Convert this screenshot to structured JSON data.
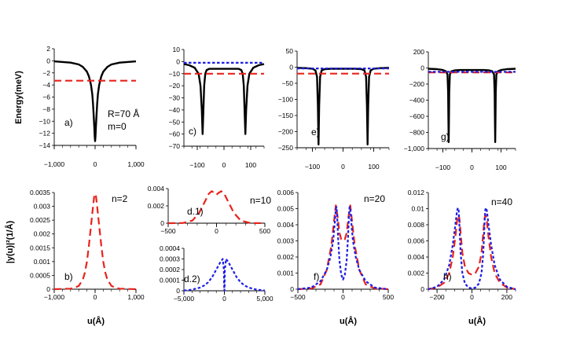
{
  "axis_labels": {
    "energy": "Energy(meV)",
    "psi": "|y(u)|²(1/Å)",
    "u": "u(Å)"
  },
  "colors": {
    "potential": "#000000",
    "red": "#e8231c",
    "blue": "#1d1ee6"
  },
  "chart_data": [
    {
      "id": "a",
      "type": "line",
      "label": "a)",
      "annotations": [
        "R=70 Å",
        "m=0"
      ],
      "xlim": [
        -1000,
        1000
      ],
      "ylim": [
        -14,
        2
      ],
      "xticks": [
        -1000,
        0,
        1000
      ],
      "xtick_labels": [
        "−1,000",
        "0",
        "1,000"
      ],
      "yticks": [
        2,
        0,
        -2,
        -4,
        -6,
        -8,
        -10,
        -12,
        -14
      ],
      "ytick_labels": [
        "2",
        "0",
        "−2",
        "−4",
        "−6",
        "−8",
        "−10",
        "−12",
        "−14"
      ],
      "ylabel": "Energy(meV)",
      "series": [
        {
          "name": "potential",
          "style": "solid",
          "color": "#000000",
          "x": [
            -1000,
            -600,
            -400,
            -300,
            -200,
            -150,
            -100,
            -70,
            -50,
            -30,
            -20,
            -10,
            0,
            10,
            20,
            30,
            50,
            70,
            100,
            150,
            200,
            300,
            400,
            600,
            1000
          ],
          "y": [
            -0.1,
            -0.3,
            -0.6,
            -1.0,
            -1.8,
            -2.6,
            -4.0,
            -5.5,
            -7.2,
            -9.5,
            -11.0,
            -12.5,
            -13.3,
            -12.5,
            -11.0,
            -9.5,
            -7.2,
            -5.5,
            -4.0,
            -2.6,
            -1.8,
            -1.0,
            -0.6,
            -0.3,
            -0.1
          ]
        },
        {
          "name": "energy level",
          "style": "dashed",
          "color": "#e8231c",
          "x": [
            -1000,
            1000
          ],
          "y": [
            -3.3,
            -3.3
          ]
        }
      ]
    },
    {
      "id": "b",
      "type": "line",
      "label": "b)",
      "note": "n=2",
      "xlim": [
        -1000,
        1000
      ],
      "ylim": [
        0,
        0.0035
      ],
      "xticks": [
        -1000,
        0,
        1000
      ],
      "xtick_labels": [
        "−1,000",
        "0",
        "1,000"
      ],
      "yticks": [
        0,
        0.0005,
        0.001,
        0.0015,
        0.002,
        0.0025,
        0.003,
        0.0035
      ],
      "ytick_labels": [
        "0",
        "0.0005",
        "0.001",
        "0.0015",
        "0.002",
        "0.0025",
        "0.003",
        "0.0035"
      ],
      "xlabel": "u(Å)",
      "ylabel": "|y(u)|²(1/Å)",
      "series": [
        {
          "name": "probability density",
          "style": "dashed",
          "color": "#e8231c",
          "x": [
            -1000,
            -600,
            -500,
            -400,
            -300,
            -250,
            -200,
            -150,
            -100,
            -50,
            -20,
            0,
            20,
            50,
            100,
            150,
            200,
            250,
            300,
            400,
            500,
            600,
            1000
          ],
          "y": [
            0,
            2e-05,
            5e-05,
            0.00012,
            0.00035,
            0.0006,
            0.001,
            0.0016,
            0.0023,
            0.003,
            0.0034,
            0.00345,
            0.0034,
            0.003,
            0.0023,
            0.0016,
            0.001,
            0.0006,
            0.00035,
            0.00012,
            5e-05,
            2e-05,
            0
          ]
        }
      ]
    },
    {
      "id": "c",
      "type": "line",
      "label": "c)",
      "xlim": [
        -150,
        150
      ],
      "ylim": [
        -70,
        10
      ],
      "xticks": [
        -100,
        0,
        100
      ],
      "xtick_labels": [
        "−100",
        "0",
        "100"
      ],
      "yticks": [
        10,
        0,
        -10,
        -20,
        -30,
        -40,
        -50,
        -60,
        -70
      ],
      "ytick_labels": [
        "10",
        "0",
        "−10",
        "−20",
        "−30",
        "−40",
        "−50",
        "−60",
        "−70"
      ],
      "series": [
        {
          "name": "potential",
          "style": "solid",
          "color": "#000000",
          "x": [
            -150,
            -130,
            -110,
            -95,
            -88,
            -83,
            -80,
            -77,
            -74,
            -70,
            -65,
            -55,
            -40,
            -20,
            0,
            20,
            40,
            55,
            65,
            70,
            74,
            77,
            80,
            83,
            88,
            95,
            110,
            130,
            150
          ],
          "y": [
            -2,
            -3,
            -5,
            -10,
            -20,
            -40,
            -60,
            -40,
            -20,
            -10,
            -7,
            -6,
            -6,
            -6,
            -6,
            -6,
            -6,
            -6,
            -7,
            -10,
            -20,
            -40,
            -60,
            -40,
            -20,
            -10,
            -5,
            -3,
            -2
          ]
        },
        {
          "name": "level red",
          "style": "dashed",
          "color": "#e8231c",
          "x": [
            -150,
            150
          ],
          "y": [
            -10,
            -10
          ]
        },
        {
          "name": "level blue",
          "style": "dotted",
          "color": "#1d1ee6",
          "x": [
            -150,
            150
          ],
          "y": [
            -1,
            -1
          ]
        }
      ]
    },
    {
      "id": "d1",
      "type": "line",
      "label": "d.1)",
      "note": "n=10",
      "xlim": [
        -500,
        500
      ],
      "ylim": [
        0,
        0.004
      ],
      "xticks": [
        -500,
        0,
        500
      ],
      "xtick_labels": [
        "−500",
        "0",
        "500"
      ],
      "yticks": [
        0,
        0.002,
        0.004
      ],
      "ytick_labels": [
        "0",
        "0.002",
        "0.004"
      ],
      "series": [
        {
          "name": "probability density",
          "style": "dashed",
          "color": "#e8231c",
          "x": [
            -500,
            -350,
            -250,
            -180,
            -120,
            -80,
            -50,
            -20,
            0,
            20,
            50,
            80,
            120,
            180,
            250,
            350,
            500
          ],
          "y": [
            0,
            2e-05,
            0.0003,
            0.0012,
            0.0025,
            0.0034,
            0.0037,
            0.0035,
            0.0033,
            0.0035,
            0.0037,
            0.0034,
            0.0025,
            0.0012,
            0.0003,
            2e-05,
            0
          ]
        }
      ]
    },
    {
      "id": "d2",
      "type": "line",
      "label": "d.2)",
      "xlim": [
        -5000,
        5000
      ],
      "ylim": [
        0,
        0.0004
      ],
      "xticks": [
        -5000,
        0,
        5000
      ],
      "xtick_labels": [
        "−5,000",
        "0",
        "5,000"
      ],
      "yticks": [
        0,
        0.0001,
        0.0002,
        0.0003,
        0.0004
      ],
      "ytick_labels": [
        "0",
        "0.0001",
        "0.0002",
        "0.0003",
        "0.0004"
      ],
      "series": [
        {
          "name": "probability density",
          "style": "dotted",
          "color": "#1d1ee6",
          "x": [
            -5000,
            -4000,
            -3000,
            -2500,
            -2000,
            -1500,
            -1000,
            -500,
            -200,
            -60,
            -30,
            0,
            30,
            60,
            200,
            500,
            1000,
            1500,
            2000,
            2500,
            3000,
            4000,
            5000
          ],
          "y": [
            2e-06,
            1e-05,
            3e-05,
            5e-05,
            8e-05,
            0.00013,
            0.0002,
            0.00027,
            0.0003,
            0.0002,
            5e-05,
            0,
            5e-05,
            0.0002,
            0.0003,
            0.00027,
            0.0002,
            0.00013,
            8e-05,
            5e-05,
            3e-05,
            1e-05,
            2e-06
          ]
        }
      ]
    },
    {
      "id": "e",
      "type": "line",
      "label": "e)",
      "xlim": [
        -150,
        150
      ],
      "ylim": [
        -250,
        50
      ],
      "xticks": [
        -100,
        0,
        100
      ],
      "xtick_labels": [
        "−100",
        "0",
        "100"
      ],
      "yticks": [
        50,
        0,
        -50,
        -100,
        -150,
        -200,
        -250
      ],
      "ytick_labels": [
        "50",
        "0",
        "−50",
        "−100",
        "−150",
        "−200",
        "−250"
      ],
      "series": [
        {
          "name": "potential",
          "style": "solid",
          "color": "#000000",
          "x": [
            -150,
            -120,
            -100,
            -90,
            -85,
            -82,
            -80,
            -78,
            -75,
            -70,
            -60,
            -40,
            0,
            40,
            60,
            70,
            75,
            78,
            80,
            82,
            85,
            90,
            100,
            120,
            150
          ],
          "y": [
            -2,
            -3,
            -5,
            -10,
            -30,
            -120,
            -240,
            -120,
            -30,
            -10,
            -6,
            -5,
            -5,
            -5,
            -6,
            -10,
            -30,
            -120,
            -240,
            -120,
            -30,
            -10,
            -5,
            -3,
            -2
          ]
        },
        {
          "name": "level red",
          "style": "dashed",
          "color": "#e8231c",
          "x": [
            -150,
            150
          ],
          "y": [
            -20,
            -20
          ]
        },
        {
          "name": "level blue",
          "style": "dotted",
          "color": "#1d1ee6",
          "x": [
            -150,
            150
          ],
          "y": [
            -4,
            -4
          ]
        }
      ]
    },
    {
      "id": "f",
      "type": "line",
      "label": "f)",
      "note": "n=20",
      "xlim": [
        -500,
        500
      ],
      "ylim": [
        0,
        0.006
      ],
      "xticks": [
        -500,
        0,
        500
      ],
      "xtick_labels": [
        "−500",
        "0",
        "500"
      ],
      "yticks": [
        0,
        0.001,
        0.002,
        0.003,
        0.004,
        0.005,
        0.006
      ],
      "ytick_labels": [
        "0",
        "0.001",
        "0.002",
        "0.003",
        "0.004",
        "0.005",
        "0.006"
      ],
      "xlabel": "u(Å)",
      "series": [
        {
          "name": "red",
          "style": "dashed",
          "color": "#e8231c",
          "x": [
            -500,
            -350,
            -250,
            -180,
            -130,
            -100,
            -80,
            -60,
            -40,
            -20,
            0,
            20,
            40,
            60,
            80,
            100,
            130,
            180,
            250,
            350,
            500
          ],
          "y": [
            0,
            5e-05,
            0.0003,
            0.0012,
            0.0027,
            0.0042,
            0.0052,
            0.0045,
            0.0035,
            0.0031,
            0.003,
            0.0031,
            0.0035,
            0.0045,
            0.0052,
            0.0042,
            0.0027,
            0.0012,
            0.0003,
            5e-05,
            0
          ]
        },
        {
          "name": "blue",
          "style": "dotted",
          "color": "#1d1ee6",
          "x": [
            -500,
            -350,
            -250,
            -180,
            -140,
            -110,
            -90,
            -80,
            -72,
            -65,
            -55,
            -40,
            -20,
            0,
            20,
            40,
            55,
            65,
            72,
            80,
            90,
            110,
            140,
            180,
            250,
            350,
            500
          ],
          "y": [
            0,
            0.0001,
            0.0005,
            0.0012,
            0.002,
            0.003,
            0.0042,
            0.005,
            0.0051,
            0.0045,
            0.0032,
            0.0018,
            0.0009,
            0.0006,
            0.0009,
            0.0018,
            0.0032,
            0.0045,
            0.0051,
            0.005,
            0.0042,
            0.003,
            0.002,
            0.0012,
            0.0005,
            0.0001,
            0
          ]
        }
      ]
    },
    {
      "id": "g",
      "type": "line",
      "label": "g)",
      "xlim": [
        -150,
        150
      ],
      "ylim": [
        -1000,
        200
      ],
      "xticks": [
        -100,
        0,
        100
      ],
      "xtick_labels": [
        "−100",
        "0",
        "100"
      ],
      "yticks": [
        200,
        0,
        -200,
        -400,
        -600,
        -800,
        -1000
      ],
      "ytick_labels": [
        "200",
        "0",
        "−200",
        "−400",
        "−600",
        "−800",
        "−1,000"
      ],
      "series": [
        {
          "name": "potential",
          "style": "solid",
          "color": "#000000",
          "x": [
            -150,
            -120,
            -100,
            -90,
            -84,
            -82,
            -81,
            -80,
            -79,
            -78,
            -76,
            -70,
            -60,
            -40,
            0,
            40,
            60,
            70,
            76,
            78,
            79,
            80,
            81,
            82,
            84,
            90,
            100,
            120,
            150
          ],
          "y": [
            -10,
            -15,
            -25,
            -40,
            -80,
            -300,
            -600,
            -920,
            -600,
            -300,
            -80,
            -40,
            -30,
            -25,
            -25,
            -25,
            -30,
            -40,
            -80,
            -300,
            -600,
            -920,
            -600,
            -300,
            -80,
            -40,
            -25,
            -15,
            -10
          ]
        },
        {
          "name": "level red",
          "style": "dashed",
          "color": "#e8231c",
          "x": [
            -150,
            150
          ],
          "y": [
            -55,
            -55
          ]
        },
        {
          "name": "level blue",
          "style": "dotted",
          "color": "#1d1ee6",
          "x": [
            -150,
            150
          ],
          "y": [
            -48,
            -48
          ]
        }
      ]
    },
    {
      "id": "h",
      "type": "line",
      "label": "h)",
      "note": "n=40",
      "xlim": [
        -250,
        250
      ],
      "ylim": [
        0,
        0.012
      ],
      "xticks": [
        -200,
        0,
        200
      ],
      "xtick_labels": [
        "−200",
        "0",
        "200"
      ],
      "yticks": [
        0,
        0.002,
        0.004,
        0.006,
        0.008,
        0.01,
        0.012
      ],
      "ytick_labels": [
        "0",
        "0.002",
        "0.004",
        "0.006",
        "0.008",
        "0.01",
        "0.012"
      ],
      "xlabel": "u(Å)",
      "series": [
        {
          "name": "red",
          "style": "dashed",
          "color": "#e8231c",
          "x": [
            -250,
            -200,
            -160,
            -130,
            -110,
            -95,
            -85,
            -78,
            -72,
            -65,
            -55,
            -40,
            -20,
            0,
            20,
            40,
            55,
            65,
            72,
            78,
            85,
            95,
            110,
            130,
            160,
            200,
            250
          ],
          "y": [
            0,
            0.0002,
            0.0008,
            0.002,
            0.004,
            0.0065,
            0.0085,
            0.0092,
            0.0088,
            0.007,
            0.0045,
            0.0028,
            0.002,
            0.0018,
            0.002,
            0.0028,
            0.0045,
            0.007,
            0.0088,
            0.0092,
            0.0085,
            0.0065,
            0.004,
            0.002,
            0.0008,
            0.0002,
            0
          ]
        },
        {
          "name": "blue",
          "style": "dotted",
          "color": "#1d1ee6",
          "x": [
            -250,
            -200,
            -160,
            -130,
            -110,
            -95,
            -85,
            -80,
            -76,
            -72,
            -65,
            -55,
            -40,
            -20,
            0,
            20,
            40,
            55,
            65,
            72,
            76,
            80,
            85,
            95,
            110,
            130,
            160,
            200,
            250
          ],
          "y": [
            0,
            0.0003,
            0.0012,
            0.003,
            0.0055,
            0.008,
            0.0098,
            0.0101,
            0.0098,
            0.008,
            0.0045,
            0.002,
            0.0007,
            0.0002,
            0.0001,
            0.0002,
            0.0007,
            0.002,
            0.0045,
            0.008,
            0.0098,
            0.0101,
            0.0098,
            0.008,
            0.0055,
            0.003,
            0.0012,
            0.0003,
            0
          ]
        }
      ]
    }
  ]
}
